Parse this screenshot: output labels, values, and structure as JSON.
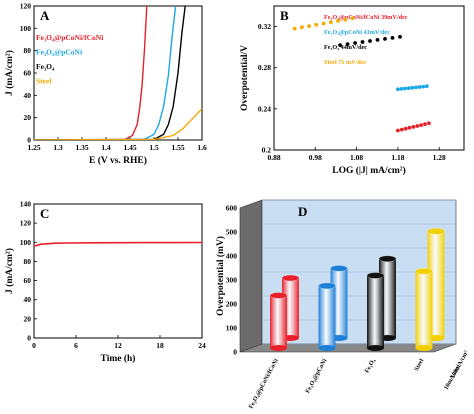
{
  "chart_data": [
    {
      "type": "line",
      "panel_label": "A",
      "xlabel": "E (V vs. RHE)",
      "ylabel": "J (mA/cm²)",
      "xlim": [
        1.25,
        1.6
      ],
      "ylim": [
        0,
        120
      ],
      "x_ticks": [
        "1.25",
        "1.3",
        "1.35",
        "1.4",
        "1.45",
        "1.5",
        "1.55",
        "1.6"
      ],
      "y_ticks": [
        "0",
        "20",
        "40",
        "60",
        "80",
        "100",
        "120"
      ],
      "legend_position": "top-left",
      "series": [
        {
          "name": "Fe₃O₄@pCoNi/fCoNi",
          "color": "#e8202a",
          "x": [
            1.25,
            1.44,
            1.455,
            1.465,
            1.47,
            1.475,
            1.48,
            1.485
          ],
          "y": [
            0,
            0.5,
            4,
            14,
            28,
            48,
            80,
            120
          ]
        },
        {
          "name": "Fe₃O₄@pCoNi",
          "color": "#1ea7e6",
          "x": [
            1.25,
            1.48,
            1.5,
            1.51,
            1.52,
            1.53,
            1.537,
            1.545
          ],
          "y": [
            0,
            0.5,
            5,
            14,
            30,
            58,
            90,
            120
          ]
        },
        {
          "name": "Fe₃O₄",
          "color": "#000000",
          "x": [
            1.25,
            1.5,
            1.52,
            1.53,
            1.54,
            1.55,
            1.558,
            1.565
          ],
          "y": [
            0,
            0.5,
            5,
            14,
            30,
            60,
            95,
            120
          ]
        },
        {
          "name": "Steel",
          "color": "#f5a800",
          "x": [
            1.25,
            1.5,
            1.54,
            1.56,
            1.58,
            1.6
          ],
          "y": [
            0,
            0.5,
            4,
            10,
            19,
            28
          ]
        }
      ]
    },
    {
      "type": "scatter",
      "panel_label": "B",
      "xlabel": "LOG (|J| mA/cm²)",
      "ylabel": "Overpotential/V",
      "xlim": [
        0.88,
        1.34
      ],
      "ylim": [
        0.2,
        0.34
      ],
      "x_ticks": [
        "0.88",
        "0.98",
        "1.08",
        "1.18",
        "1.28"
      ],
      "y_ticks": [
        "0.2",
        "0.24",
        "0.28",
        "0.32"
      ],
      "legend_position": "top-right",
      "series": [
        {
          "name": "Fe₃O₄@pCoNi/fCoNi 39mV/dec",
          "color": "#e8202a",
          "x": [
            1.18,
            1.255
          ],
          "y": [
            0.219,
            0.226
          ]
        },
        {
          "name": "Fe₃O₄@pCoNi 41mV/dec",
          "color": "#1ea7e6",
          "x": [
            1.18,
            1.25
          ],
          "y": [
            0.259,
            0.262
          ]
        },
        {
          "name": "Fe₃O₄ 44mV/dec",
          "color": "#000000",
          "x": [
            1.04,
            1.185
          ],
          "y": [
            0.302,
            0.31
          ]
        },
        {
          "name": "Steel 71 mV/dec",
          "color": "#f5a800",
          "x": [
            0.93,
            1.07
          ],
          "y": [
            0.318,
            0.328
          ]
        }
      ]
    },
    {
      "type": "line",
      "panel_label": "C",
      "xlabel": "Time (h)",
      "ylabel": "J (mA/cm²)",
      "xlim": [
        0,
        24
      ],
      "ylim": [
        0,
        140
      ],
      "x_ticks": [
        "0",
        "6",
        "12",
        "18",
        "24"
      ],
      "y_ticks": [
        "0",
        "20",
        "40",
        "60",
        "80",
        "100",
        "120",
        "140"
      ],
      "series": [
        {
          "color": "#e8202a",
          "x": [
            0,
            0.5,
            1,
            2,
            3,
            5,
            8,
            12,
            16,
            20,
            24
          ],
          "y": [
            96,
            97,
            98,
            98.5,
            99,
            99.3,
            99.5,
            99.6,
            99.7,
            99.7,
            99.8
          ]
        }
      ]
    },
    {
      "type": "bar",
      "panel_label": "D",
      "ylabel": "Overpotential (mV)",
      "ylim": [
        0,
        600
      ],
      "y_ticks": [
        "0",
        "100",
        "200",
        "300",
        "400",
        "500",
        "600"
      ],
      "categories": [
        "Fe₃O₄@pCoNi/fCoNi",
        "Fe₃O₄@pCoNi",
        "Fe₃O₄",
        "Steel"
      ],
      "depth_labels": [
        "10mA/cm²",
        "100mA/cm²"
      ],
      "series": [
        {
          "name": "10mA/cm²",
          "values": [
            219,
            259,
            302,
            320
          ]
        },
        {
          "name": "100mA/cm²",
          "values": [
            250,
            290,
            330,
            445
          ]
        }
      ],
      "colors": [
        "#e8202a",
        "#1e7fd8",
        "#111111",
        "#f2d000"
      ]
    }
  ]
}
